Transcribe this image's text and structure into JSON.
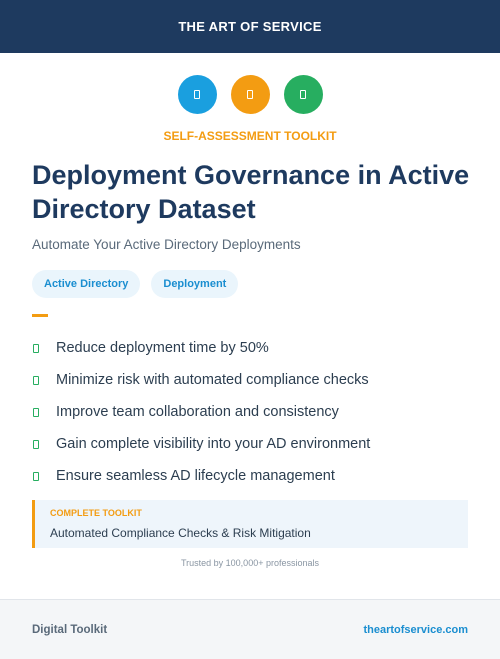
{
  "header": {
    "brand": "THE ART OF SERVICE"
  },
  "icons": [
    {
      "name": "document-icon",
      "color": "#1a9fdf"
    },
    {
      "name": "clipboard-icon",
      "color": "#f39c12"
    },
    {
      "name": "checklist-icon",
      "color": "#27ae60"
    }
  ],
  "eyebrow": "SELF-ASSESSMENT TOOLKIT",
  "title": "Deployment Governance in Active Directory Dataset",
  "subtitle": "Automate Your Active Directory Deployments",
  "tags": [
    "Active Directory",
    "Deployment"
  ],
  "benefits": [
    "Reduce deployment time by 50%",
    "Minimize risk with automated compliance checks",
    "Improve team collaboration and consistency",
    "Gain complete visibility into your AD environment",
    "Ensure seamless AD lifecycle management"
  ],
  "callout": {
    "label": "COMPLETE TOOLKIT",
    "text": "Automated Compliance Checks & Risk Mitigation"
  },
  "trusted": "Trusted by 100,000+ professionals",
  "footer": {
    "left": "Digital Toolkit",
    "right": "theartofservice.com"
  },
  "colors": {
    "navy": "#1e3a5f",
    "accent_orange": "#f39c12",
    "accent_blue": "#1a8ed0",
    "accent_green": "#27ae60"
  }
}
